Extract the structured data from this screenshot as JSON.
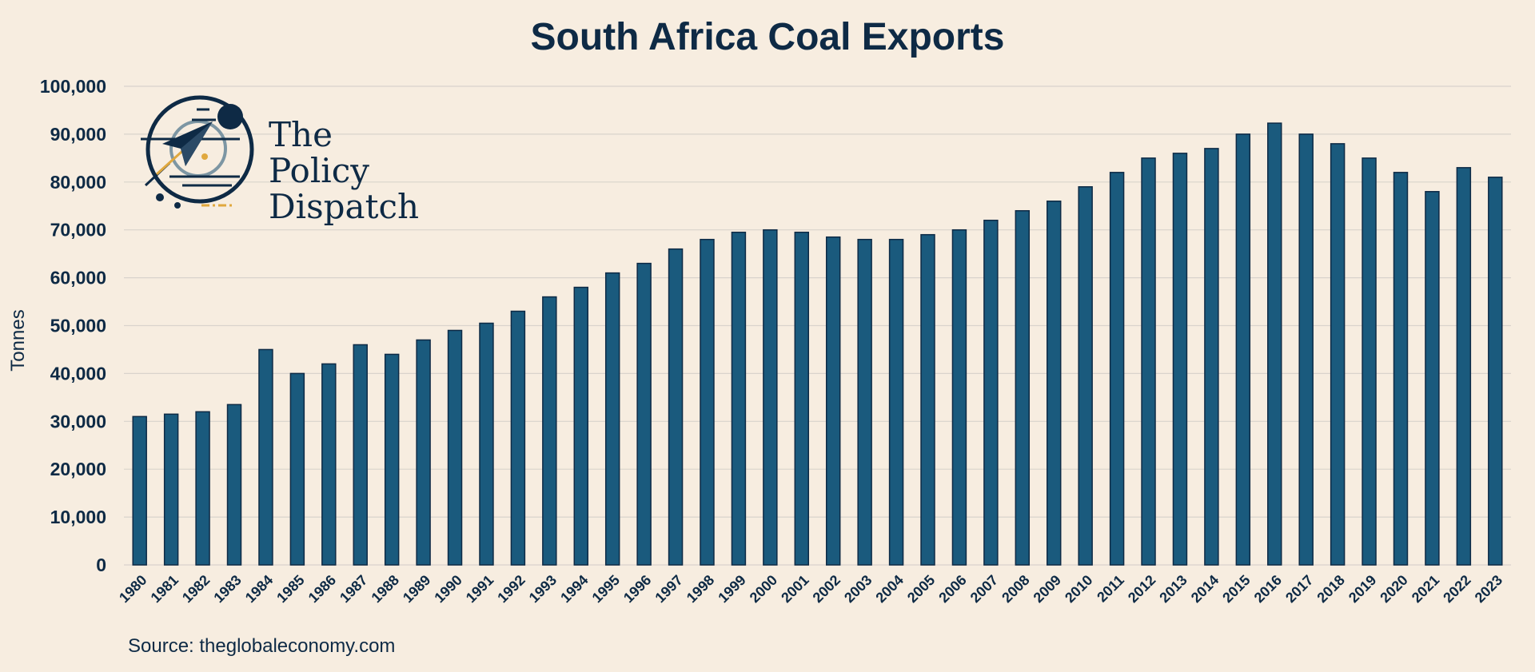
{
  "chart_data": {
    "type": "bar",
    "title": "South Africa Coal Exports",
    "xlabel": "",
    "ylabel": "Tonnes",
    "ylim": [
      0,
      100000
    ],
    "yticks": [
      0,
      10000,
      20000,
      30000,
      40000,
      50000,
      60000,
      70000,
      80000,
      90000,
      100000
    ],
    "ytick_labels": [
      "0",
      "10,000",
      "20,000",
      "30,000",
      "40,000",
      "50,000",
      "60,000",
      "70,000",
      "80,000",
      "90,000",
      "100,000"
    ],
    "grid": true,
    "categories": [
      "1980",
      "1981",
      "1982",
      "1983",
      "1984",
      "1985",
      "1986",
      "1987",
      "1988",
      "1989",
      "1990",
      "1991",
      "1992",
      "1993",
      "1994",
      "1995",
      "1996",
      "1997",
      "1998",
      "1999",
      "2000",
      "2001",
      "2002",
      "2003",
      "2004",
      "2005",
      "2006",
      "2007",
      "2008",
      "2009",
      "2010",
      "2011",
      "2012",
      "2013",
      "2014",
      "2015",
      "2016",
      "2017",
      "2018",
      "2019",
      "2020",
      "2021",
      "2022",
      "2023"
    ],
    "values": [
      31000,
      31500,
      32000,
      33500,
      45000,
      40000,
      42000,
      46000,
      44000,
      47000,
      49000,
      50500,
      53000,
      56000,
      58000,
      61000,
      63000,
      66000,
      68000,
      69500,
      70000,
      69500,
      68500,
      68000,
      68000,
      69000,
      70000,
      72000,
      74000,
      76000,
      79000,
      82000,
      85000,
      86000,
      87000,
      90000,
      92300,
      90000,
      88000,
      85000,
      82000,
      78000,
      83000,
      81000
    ],
    "colors": {
      "bar": "#1a5a7d",
      "bar_edge": "#0e2a45",
      "text": "#0e2a45",
      "accent": "#e0a83e"
    }
  },
  "logo": {
    "line1": "The",
    "line2": "Policy",
    "line3": "Dispatch",
    "icon": "paper-plane-icon"
  },
  "source": "Source: theglobaleconomy.com"
}
